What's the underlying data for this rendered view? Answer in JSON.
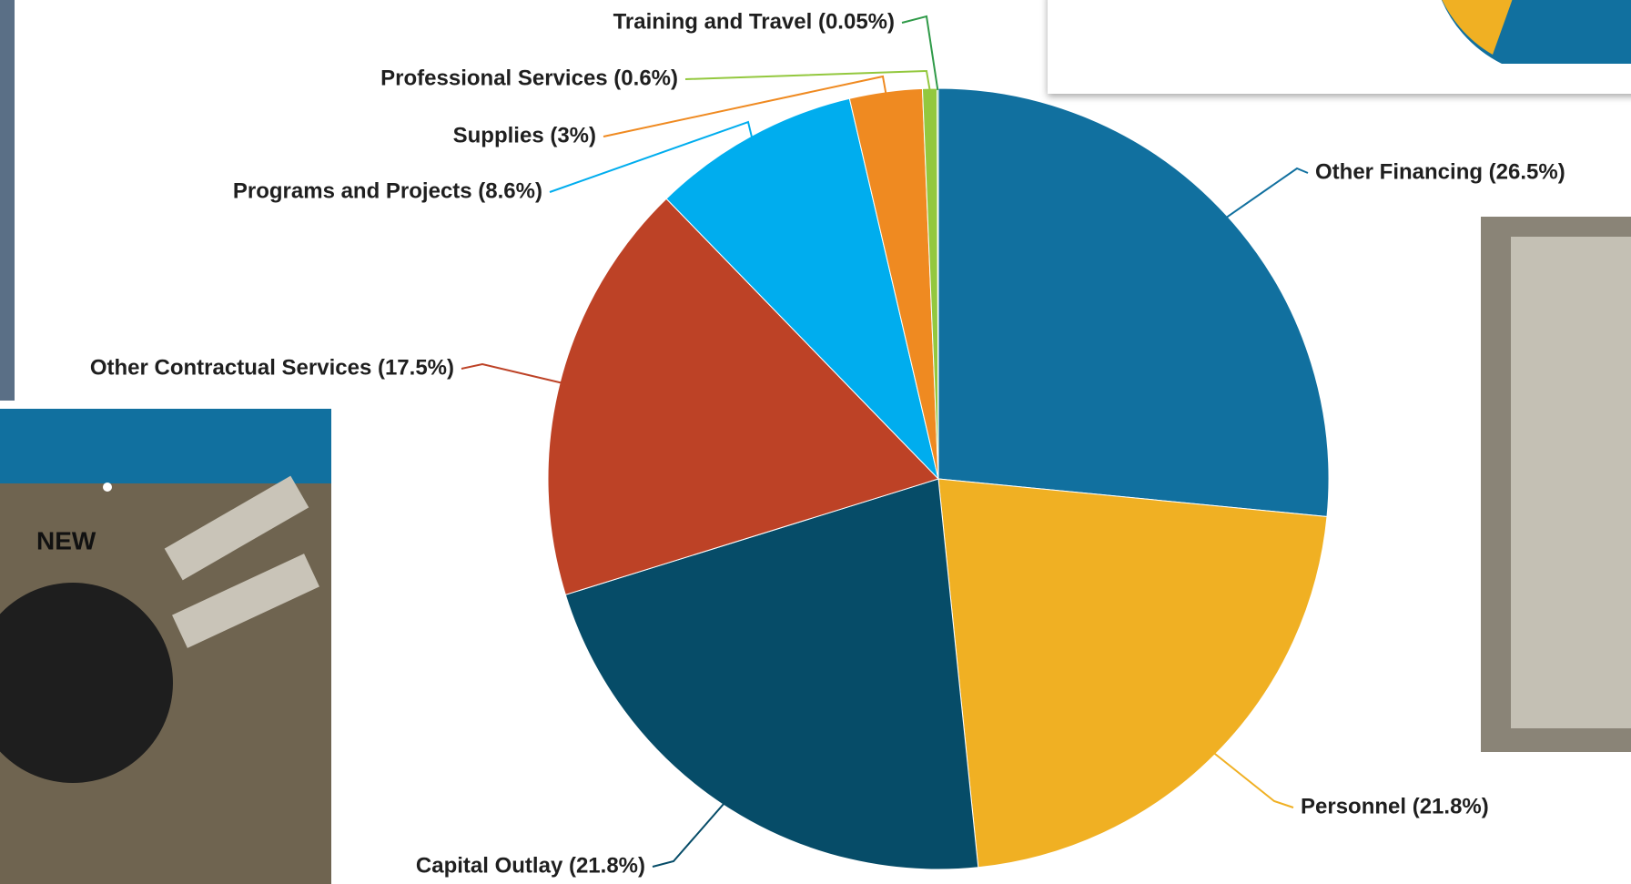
{
  "chart_data": {
    "type": "pie",
    "categories": [
      "Other Financing (26.5%)",
      "Personnel (21.8%)",
      "Capital Outlay (21.8%)",
      "Other Contractual Services (17.5%)",
      "Programs and Projects (8.6%)",
      "Supplies (3%)",
      "Professional Services (0.6%)",
      "Training and Travel (0.05%)"
    ],
    "values": [
      26.5,
      21.8,
      21.8,
      17.5,
      8.6,
      3,
      0.6,
      0.05
    ],
    "colors": [
      "#11709f",
      "#f0b023",
      "#064c68",
      "#bd4226",
      "#00adee",
      "#ef8a21",
      "#93c83e",
      "#2f9a48"
    ]
  },
  "photo": {
    "label": "NEW"
  }
}
